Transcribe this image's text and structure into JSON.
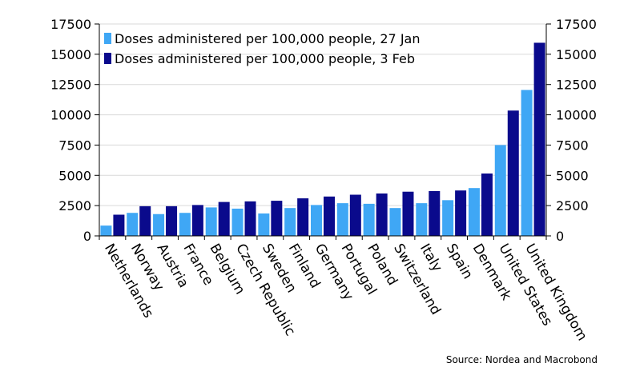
{
  "chart_data": {
    "type": "bar",
    "title": "",
    "xlabel": "",
    "ylabel": "",
    "ylim": [
      0,
      17500
    ],
    "yticks": [
      0,
      2500,
      5000,
      7500,
      10000,
      12500,
      15000,
      17500
    ],
    "y_axis_both_sides": true,
    "grid": "horizontal",
    "legend_position": "top-left",
    "categories": [
      "Netherlands",
      "Norway",
      "Austria",
      "France",
      "Belgium",
      "Czech Republic",
      "Sweden",
      "Finland",
      "Germany",
      "Portugal",
      "Poland",
      "Switzerland",
      "Italy",
      "Spain",
      "Denmark",
      "United States",
      "United Kingdom"
    ],
    "series": [
      {
        "name": "Doses administered per 100,000 people, 27 Jan",
        "color": "#3fa7f5",
        "values": [
          850,
          1900,
          1800,
          1900,
          2350,
          2250,
          1850,
          2300,
          2550,
          2700,
          2650,
          2300,
          2700,
          2950,
          3950,
          7500,
          12050
        ]
      },
      {
        "name": "Doses administered per 100,000 people, 3 Feb",
        "color": "#0a0a8c",
        "values": [
          1750,
          2450,
          2450,
          2550,
          2800,
          2850,
          2900,
          3100,
          3250,
          3400,
          3500,
          3650,
          3700,
          3750,
          5150,
          10350,
          15950
        ]
      }
    ],
    "source": "Source: Nordea and Macrobond"
  }
}
